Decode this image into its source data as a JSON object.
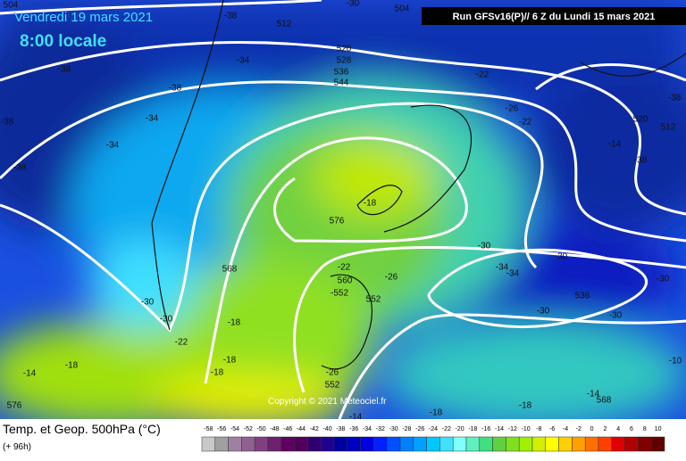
{
  "header": {
    "date": "Vendredi 19 mars 2021",
    "time": "8:00 locale",
    "run": "Run GFSv16(P)// 6 Z du Lundi 15 mars 2021"
  },
  "footer": {
    "title": "Temp. et Geop. 500hPa (°C)",
    "forecast": "(+ 96h)",
    "copyright": "Copyright © 2021 Meteociel.fr"
  },
  "legend": {
    "labels": [
      -58,
      -56,
      -54,
      -52,
      -50,
      -48,
      -46,
      -44,
      -42,
      -40,
      -38,
      -36,
      -34,
      -32,
      -30,
      -28,
      -26,
      -24,
      -22,
      -20,
      -18,
      -16,
      -14,
      -12,
      -10,
      -8,
      -6,
      -4,
      -2,
      0,
      2,
      4,
      6,
      8,
      10
    ],
    "colors": [
      "#c8c8c8",
      "#a0a0a0",
      "#a080a0",
      "#906090",
      "#804080",
      "#702070",
      "#600060",
      "#50005a",
      "#300070",
      "#200090",
      "#0000a0",
      "#0000c0",
      "#0000e0",
      "#0020ff",
      "#0050ff",
      "#0080ff",
      "#00a0ff",
      "#00c8ff",
      "#40e0ff",
      "#80ffff",
      "#60f0c0",
      "#40e080",
      "#60d040",
      "#80e020",
      "#a0f000",
      "#d0f000",
      "#ffff00",
      "#ffd000",
      "#ffa000",
      "#ff7000",
      "#ff4000",
      "#e00000",
      "#b00000",
      "#800000",
      "#600000"
    ]
  },
  "map_labels": [
    "504",
    "-38",
    "512",
    "-30",
    "504",
    "520",
    "528",
    "536",
    "544",
    "-38",
    "-34",
    "-38",
    "-34",
    "-34",
    "-38",
    "-38",
    "-22",
    "-26",
    "-22",
    "-38",
    "520",
    "512",
    "-14",
    "-38",
    "-18",
    "576",
    "568",
    "-22",
    "560",
    "-552",
    "552",
    "-26",
    "-30",
    "-30",
    "-34",
    "-34",
    "536",
    "-30",
    "-30",
    "-30",
    "-30",
    "-30",
    "-22",
    "-18",
    "-18",
    "-18",
    "-14",
    "-18",
    "-26",
    "552",
    "-14",
    "568",
    "-18",
    "-18",
    "-14",
    "576",
    "-10"
  ]
}
